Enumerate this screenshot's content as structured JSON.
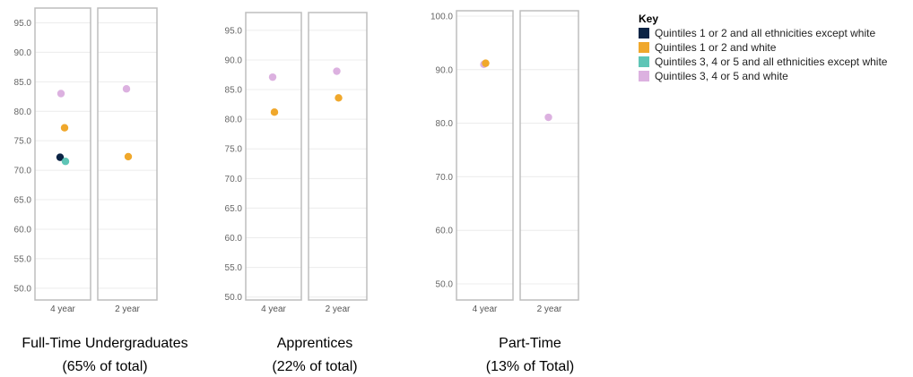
{
  "chart_data": {
    "type": "scatter",
    "key": {
      "title": "Key",
      "entries": [
        {
          "label": "Quintiles 1 or 2 and all ethnicities except white",
          "color": "#0b2445"
        },
        {
          "label": "Quintiles 1 or 2 and white",
          "color": "#f0a82c"
        },
        {
          "label": "Quintiles 3, 4 or 5 and all ethnicities except white",
          "color": "#5ec5b6"
        },
        {
          "label": "Quintiles 3, 4 or 5 and white",
          "color": "#dcb1e0"
        }
      ]
    },
    "panels": [
      {
        "title_line1": "Full-Time Undergraduates",
        "title_line2": "(65% of total)",
        "ylim": [
          48,
          97.5
        ],
        "yticks": [
          "50.0",
          "55.0",
          "60.0",
          "65.0",
          "70.0",
          "75.0",
          "80.0",
          "85.0",
          "90.0",
          "95.0"
        ],
        "categories": [
          "4 year",
          "2 year"
        ],
        "points": [
          {
            "category": "4 year",
            "series": "Quintiles 3, 4 or 5 and white",
            "y": 83.0
          },
          {
            "category": "4 year",
            "series": "Quintiles 1 or 2 and white",
            "y": 77.2
          },
          {
            "category": "4 year",
            "series": "Quintiles 1 or 2 and all ethnicities except white",
            "y": 72.2
          },
          {
            "category": "4 year",
            "series": "Quintiles 3, 4 or 5 and all ethnicities except white",
            "y": 71.5
          },
          {
            "category": "2 year",
            "series": "Quintiles 3, 4 or 5 and white",
            "y": 83.8
          },
          {
            "category": "2 year",
            "series": "Quintiles 1 or 2 and white",
            "y": 72.3
          }
        ]
      },
      {
        "title_line1": "Apprentices",
        "title_line2": "(22% of total)",
        "ylim": [
          49.5,
          98
        ],
        "yticks": [
          "50.0",
          "55.0",
          "60.0",
          "65.0",
          "70.0",
          "75.0",
          "80.0",
          "85.0",
          "90.0",
          "95.0"
        ],
        "categories": [
          "4 year",
          "2 year"
        ],
        "points": [
          {
            "category": "4 year",
            "series": "Quintiles 3, 4 or 5 and white",
            "y": 87.1
          },
          {
            "category": "4 year",
            "series": "Quintiles 1 or 2 and white",
            "y": 81.2
          },
          {
            "category": "2 year",
            "series": "Quintiles 3, 4 or 5 and white",
            "y": 88.1
          },
          {
            "category": "2 year",
            "series": "Quintiles 1 or 2 and white",
            "y": 83.6
          }
        ]
      },
      {
        "title_line1": "Part-Time",
        "title_line2": "(13% of Total)",
        "ylim": [
          47,
          101
        ],
        "yticks": [
          "50.0",
          "60.0",
          "70.0",
          "80.0",
          "90.0",
          "100.0"
        ],
        "categories": [
          "4 year",
          "2 year"
        ],
        "points": [
          {
            "category": "4 year",
            "series": "Quintiles 3, 4 or 5 and white",
            "y": 91.0
          },
          {
            "category": "4 year",
            "series": "Quintiles 1 or 2 and white",
            "y": 91.2
          },
          {
            "category": "2 year",
            "series": "Quintiles 3, 4 or 5 and white",
            "y": 81.1
          }
        ]
      }
    ]
  }
}
